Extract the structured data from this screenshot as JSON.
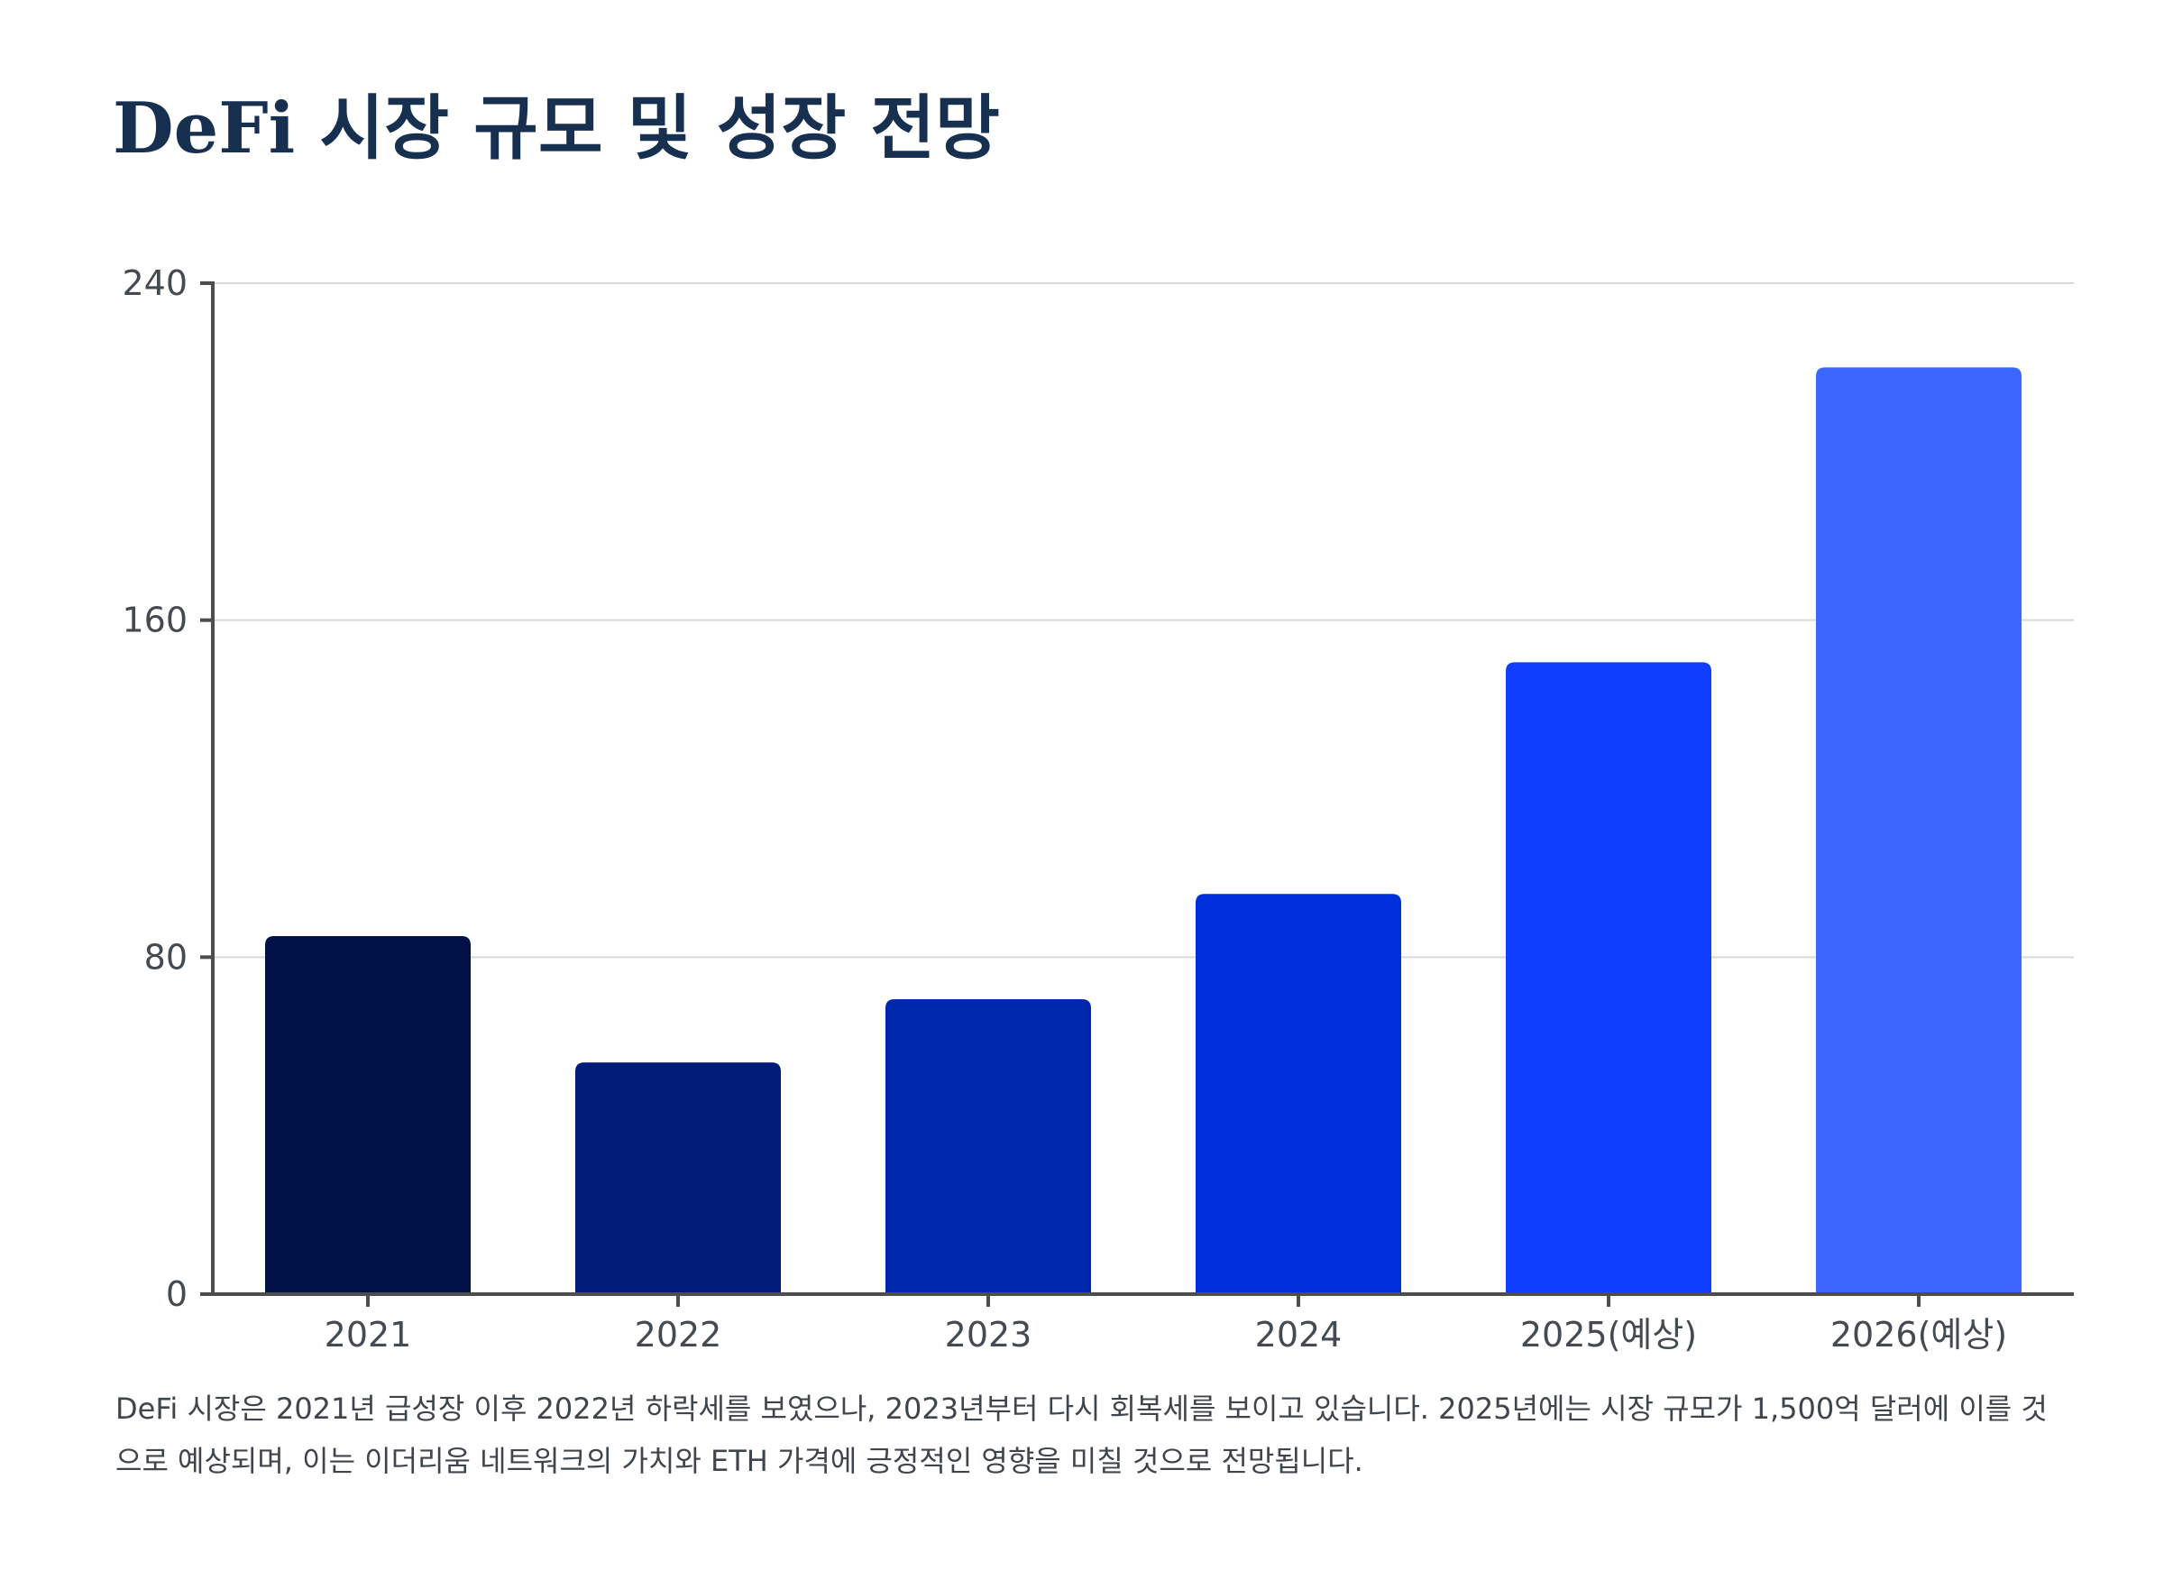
{
  "title": "DeFi 시장 규모 및 성장 전망",
  "caption": "DeFi 시장은 2021년 급성장 이후 2022년 하락세를 보였으나, 2023년부터 다시 회복세를 보이고 있습니다. 2025년에는 시장 규모가 1,500억 달러에 이를 것으로 예상되며, 이는 이더리움 네트워크의 가치와 ETH 가격에 긍정적인 영향을 미칠 것으로 전망됩니다.",
  "chart_data": {
    "type": "bar",
    "title": "DeFi 시장 규모 및 성장 전망",
    "xlabel": "",
    "ylabel": "",
    "categories": [
      "2021",
      "2022",
      "2023",
      "2024",
      "2025(예상)",
      "2026(예상)"
    ],
    "values": [
      85,
      55,
      70,
      95,
      150,
      220
    ],
    "ylim": [
      0,
      240
    ],
    "yticks": [
      0,
      80,
      160,
      240
    ],
    "grid": true,
    "legend": "none",
    "colors": [
      "#001148",
      "#001c78",
      "#0028ad",
      "#002fdc",
      "#0f3eff",
      "#3c66ff"
    ]
  }
}
